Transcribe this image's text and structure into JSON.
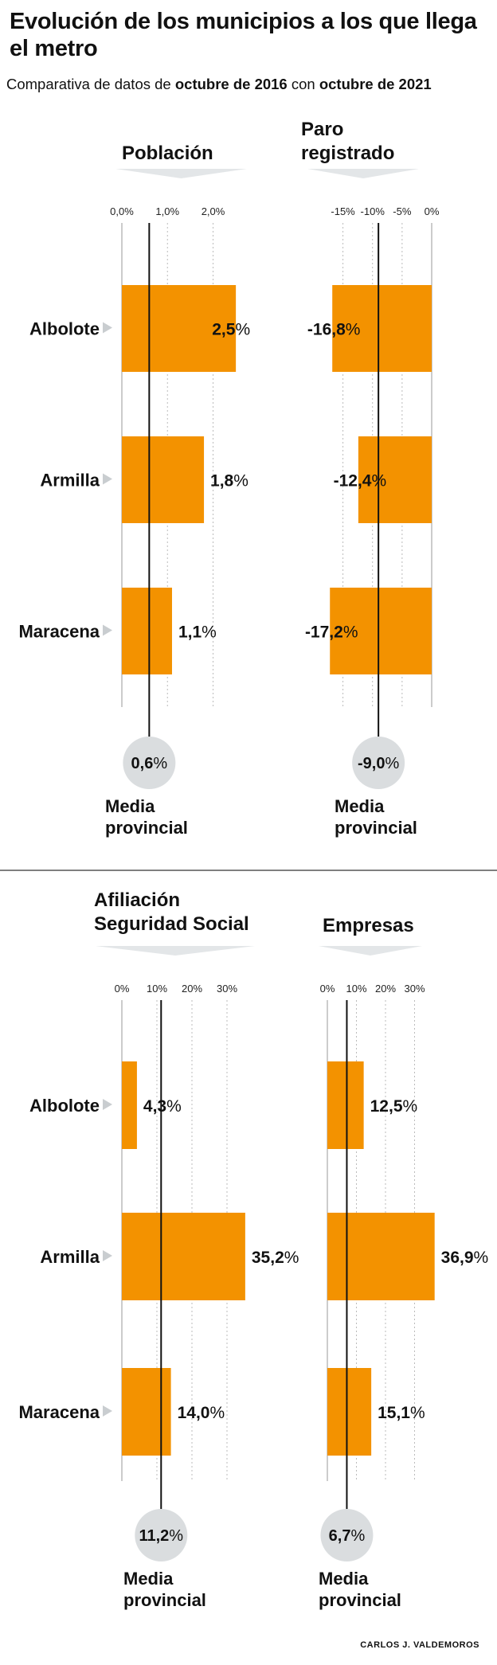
{
  "header": {
    "title": "Evolución de los municipios a los que llega el metro",
    "subtitle_parts": [
      "Comparativa de datos de ",
      "octubre de 2016",
      " con ",
      "octubre de 2021"
    ]
  },
  "credit": "CARLOS J. VALDEMOROS",
  "average_label": "Media provincial",
  "colors": {
    "bar": "#F39200",
    "avg_circle": "#DADDDF",
    "header_band": "#E3E6E8",
    "grid": "#BBBBBB"
  },
  "chart_data": [
    {
      "type": "bar",
      "title": "Población",
      "categories": [
        "Albolote",
        "Armilla",
        "Maracena"
      ],
      "values": [
        2.5,
        1.8,
        1.1
      ],
      "value_labels": [
        "2,5%",
        "1,8%",
        "1,1%"
      ],
      "xlim": [
        0,
        2.55
      ],
      "ticks": [
        0,
        1,
        2
      ],
      "tick_labels": [
        "0,0%",
        "1,0%",
        "2,0%"
      ],
      "average": 0.6,
      "average_label": "0,6%",
      "grid": true
    },
    {
      "type": "bar",
      "title": "Paro registrado",
      "categories": [
        "Albolote",
        "Armilla",
        "Maracena"
      ],
      "values": [
        -16.8,
        -12.4,
        -17.2
      ],
      "value_labels": [
        "-16,8%",
        "-12,4%",
        "-17,2%"
      ],
      "xlim": [
        -17.5,
        0
      ],
      "ticks": [
        -15,
        -10,
        -5,
        0
      ],
      "tick_labels": [
        "-15%",
        "-10%",
        "-5%",
        "0%"
      ],
      "average": -9.0,
      "average_label": "-9,0%",
      "grid": true
    },
    {
      "type": "bar",
      "title": "Afiliación Seguridad Social",
      "categories": [
        "Albolote",
        "Armilla",
        "Maracena"
      ],
      "values": [
        4.3,
        35.2,
        14.0
      ],
      "value_labels": [
        "4,3%",
        "35,2%",
        "14,0%"
      ],
      "xlim": [
        0,
        40
      ],
      "ticks": [
        0,
        10,
        20,
        30
      ],
      "tick_labels": [
        "0%",
        "10%",
        "20%",
        "30%"
      ],
      "average": 11.2,
      "average_label": "11,2%",
      "grid": true
    },
    {
      "type": "bar",
      "title": "Empresas",
      "categories": [
        "Albolote",
        "Armilla",
        "Maracena"
      ],
      "values": [
        12.5,
        36.9,
        15.1
      ],
      "value_labels": [
        "12,5%",
        "36,9%",
        "15,1%"
      ],
      "xlim": [
        0,
        40
      ],
      "ticks": [
        0,
        10,
        20,
        30
      ],
      "tick_labels": [
        "0%",
        "10%",
        "20%",
        "30%"
      ],
      "average": 6.7,
      "average_label": "6,7%",
      "grid": true
    }
  ]
}
